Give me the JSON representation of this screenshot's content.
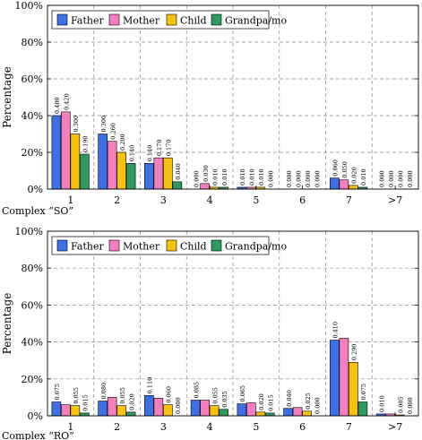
{
  "chart_data": [
    {
      "type": "bar",
      "caption": "Complex “SO”",
      "ylabel": "Percentage",
      "ylim": [
        0,
        1
      ],
      "yticks": [
        "0%",
        "20%",
        "40%",
        "60%",
        "80%",
        "100%"
      ],
      "grid": true,
      "legend_position": "top-left",
      "categories": [
        "1",
        "2",
        "3",
        "4",
        "5",
        "6",
        "7",
        ">7"
      ],
      "series": [
        {
          "name": "Father",
          "color": "#3d6fe6",
          "values": [
            0.4,
            0.3,
            0.14,
            0.0,
            0.01,
            0.0,
            0.06,
            0.0
          ],
          "labels": [
            "0.400",
            "0.300",
            "0.140",
            "0.000",
            "0.010",
            "0.000",
            "0.060",
            "0.000"
          ]
        },
        {
          "name": "Mother",
          "color": "#f57fbe",
          "values": [
            0.42,
            0.26,
            0.17,
            0.03,
            0.01,
            0.0,
            0.05,
            0.0
          ],
          "labels": [
            "0.420",
            "0.260",
            "0.170",
            "0.030",
            "0.010",
            "0.000",
            "0.050",
            "0.000"
          ]
        },
        {
          "name": "Child",
          "color": "#f9c20a",
          "values": [
            0.3,
            0.2,
            0.17,
            0.01,
            0.01,
            0.0,
            0.02,
            0.0
          ],
          "labels": [
            "0.300",
            "0.200",
            "0.170",
            "0.010",
            "0.010",
            "0.000",
            "0.020",
            "0.000"
          ]
        },
        {
          "name": "Grandpa/mo",
          "color": "#2e9a5f",
          "values": [
            0.19,
            0.14,
            0.04,
            0.01,
            0.0,
            0.0,
            0.01,
            0.0
          ],
          "labels": [
            "0.190",
            "0.140",
            "0.040",
            "0.010",
            "0.000",
            "0.000",
            "0.010",
            "0.000"
          ]
        }
      ]
    },
    {
      "type": "bar",
      "caption": "Complex “RO”",
      "ylabel": "Percentage",
      "ylim": [
        0,
        1
      ],
      "yticks": [
        "0%",
        "20%",
        "40%",
        "60%",
        "80%",
        "100%"
      ],
      "grid": true,
      "legend_position": "top-left",
      "categories": [
        "1",
        "2",
        "3",
        "4",
        "5",
        "6",
        "7",
        ">7"
      ],
      "series": [
        {
          "name": "Father",
          "color": "#3d6fe6",
          "values": [
            0.075,
            0.08,
            0.11,
            0.085,
            0.065,
            0.04,
            0.41,
            0.01
          ],
          "labels": [
            "0.075",
            "0.080",
            "0.110",
            "0.085",
            "0.065",
            "0.040",
            "0.410",
            "0.010"
          ]
        },
        {
          "name": "Mother",
          "color": "#f57fbe",
          "values": [
            0.06,
            0.1,
            0.095,
            0.085,
            0.07,
            0.045,
            0.42,
            0.01
          ]
        },
        {
          "name": "Child",
          "color": "#f9c20a",
          "values": [
            0.055,
            0.055,
            0.06,
            0.055,
            0.02,
            0.025,
            0.29,
            0.005
          ],
          "labels": [
            "0.055",
            "0.055",
            "0.060",
            "0.055",
            "0.020",
            "0.025",
            "0.290",
            "0.005"
          ]
        },
        {
          "name": "Grandpa/mo",
          "color": "#2e9a5f",
          "values": [
            0.015,
            0.02,
            0.0,
            0.035,
            0.015,
            0.0,
            0.075,
            0.0
          ],
          "labels": [
            "0.015",
            "0.020",
            "0.000",
            "0.035",
            "0.015",
            "0.000",
            "0.075",
            "0.000"
          ]
        }
      ]
    }
  ]
}
